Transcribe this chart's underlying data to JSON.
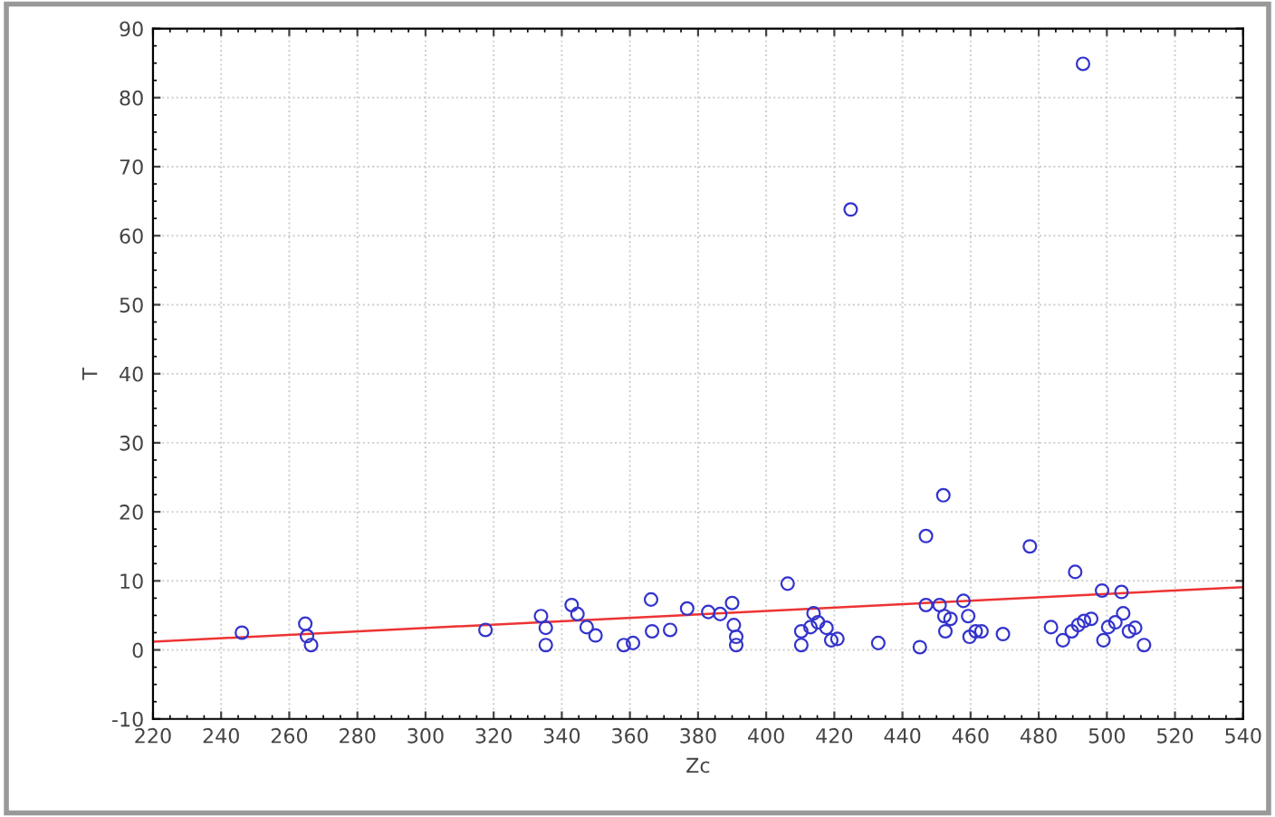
{
  "chart_data": {
    "type": "scatter",
    "xlabel": "Zc",
    "ylabel": "T",
    "xlim": [
      220,
      540
    ],
    "xticks": [
      220,
      240,
      260,
      280,
      300,
      320,
      340,
      360,
      380,
      400,
      420,
      440,
      460,
      480,
      500,
      520,
      540
    ],
    "ylim": [
      -10,
      90
    ],
    "yticks": [
      -10,
      0,
      10,
      20,
      30,
      40,
      50,
      60,
      70,
      80,
      90
    ],
    "grid": true,
    "marker": "circle",
    "series": [
      {
        "color": "#3333cc",
        "x": [
          493,
          424.8,
          452,
          446.9,
          477.4,
          490.7,
          406.3,
          246.1,
          264.7,
          265.2,
          266.4,
          317.6,
          333.9,
          335.3,
          335.3,
          342.9,
          344.6,
          347.3,
          349.9,
          358.2,
          360.9,
          366.2,
          366.5,
          371.8,
          376.8,
          383,
          386.5,
          390,
          390.5,
          391.2,
          391.2,
          413.9,
          410.3,
          410.3,
          413,
          415.2,
          417.7,
          419.1,
          420.9,
          432.9,
          445.1,
          446.9,
          450.9,
          452.3,
          452.6,
          454.1,
          457.9,
          459.3,
          459.7,
          461.5,
          463.2,
          469.5,
          483.6,
          487.1,
          489.7,
          491.6,
          493.3,
          495.4,
          498.6,
          499,
          500.4,
          502.5,
          504.3,
          504.8,
          506.5,
          508.3,
          510.9
        ],
        "values": [
          84.9,
          63.8,
          22.4,
          16.5,
          15,
          11.3,
          9.6,
          2.5,
          3.8,
          2,
          0.7,
          2.9,
          4.9,
          3.2,
          0.7,
          6.5,
          5.2,
          3.3,
          2.1,
          0.7,
          1,
          7.3,
          2.7,
          2.9,
          6,
          5.5,
          5.2,
          6.8,
          3.6,
          1.9,
          0.7,
          5.3,
          2.7,
          0.7,
          3.3,
          4,
          3.2,
          1.4,
          1.6,
          1,
          0.4,
          6.5,
          6.5,
          4.9,
          2.7,
          4.5,
          7.1,
          4.9,
          1.9,
          2.7,
          2.7,
          2.3,
          3.3,
          1.4,
          2.7,
          3.6,
          4.2,
          4.5,
          8.6,
          1.4,
          3.3,
          4,
          8.4,
          5.3,
          2.7,
          3.2,
          0.7
        ]
      },
      {
        "type": "line",
        "color": "#ee3333",
        "x": [
          220,
          540
        ],
        "values": [
          1.2,
          9.1
        ],
        "marker": "none",
        "line_style": "solid"
      }
    ]
  }
}
